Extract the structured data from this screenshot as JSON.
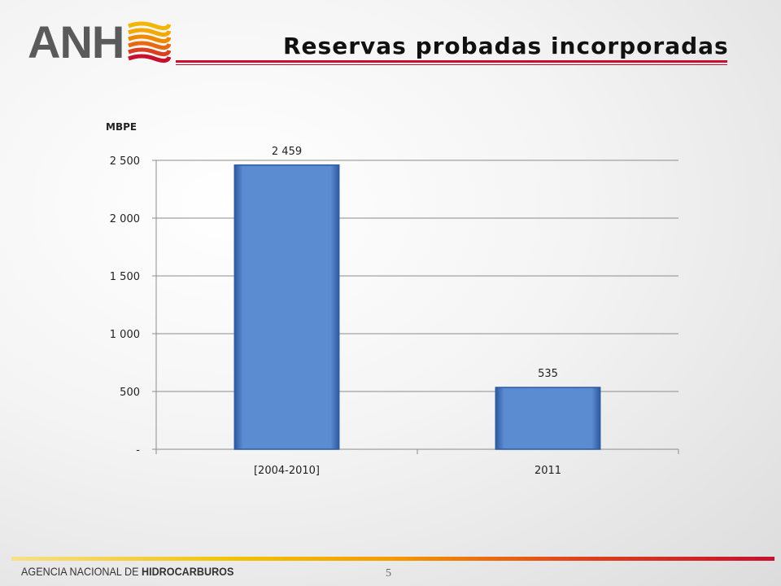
{
  "header": {
    "logo_text": "ANH",
    "title": "Reservas probadas incorporadas"
  },
  "colors": {
    "bar": "#5b8bd0",
    "bar_edge": "#2d5aa0",
    "title_rule": "#c8102e",
    "grid": "#8c8c8c"
  },
  "chart_data": {
    "type": "bar",
    "title": "",
    "ylabel": "MBPE",
    "xlabel": "",
    "categories": [
      "[2004-2010]",
      "2011"
    ],
    "values": [
      2459,
      535
    ],
    "value_labels": [
      "2 459",
      "535"
    ],
    "ylim": [
      0,
      2500
    ],
    "yticks": [
      0,
      500,
      1000,
      1500,
      2000,
      2500
    ],
    "ytick_labels": [
      "-",
      "500",
      "1 000",
      "1 500",
      "2 000",
      "2 500"
    ],
    "grid": true,
    "legend": "none"
  },
  "footer": {
    "agency_light": "AGENCIA NACIONAL DE ",
    "agency_bold": "HIDROCARBUROS",
    "page_number": "5"
  }
}
